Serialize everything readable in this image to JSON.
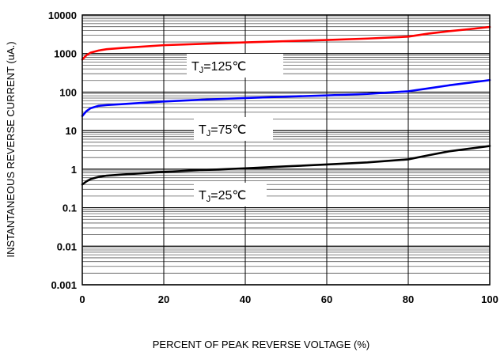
{
  "chart_data": {
    "type": "line",
    "xlabel": "PERCENT OF PEAK REVERSE VOLTAGE (%)",
    "ylabel": "INSTANTANEOUS REVERSE CURRENT (uA.)",
    "xlim": [
      0,
      100
    ],
    "ylim": [
      0.001,
      10000
    ],
    "yscale": "log",
    "grid": true,
    "x_ticks": [
      "0",
      "20",
      "40",
      "60",
      "80",
      "100"
    ],
    "y_ticks": [
      "0.001",
      "0.01",
      "0.1",
      "1",
      "10",
      "100",
      "1000",
      "10000"
    ],
    "series": [
      {
        "name": "TJ=125℃",
        "label_main": "T",
        "label_sub": "J",
        "label_rest": "=125℃",
        "color": "#ff0000",
        "x": [
          0,
          1,
          2,
          4,
          6,
          10,
          20,
          30,
          40,
          50,
          60,
          70,
          80,
          85,
          90,
          95,
          100
        ],
        "y": [
          700,
          900,
          1050,
          1200,
          1300,
          1400,
          1650,
          1800,
          1950,
          2100,
          2250,
          2450,
          2750,
          3300,
          3800,
          4300,
          4900
        ]
      },
      {
        "name": "TJ=75℃",
        "label_main": "T",
        "label_sub": "J",
        "label_rest": "=75℃",
        "color": "#0000ff",
        "x": [
          0,
          1,
          2,
          4,
          6,
          10,
          20,
          30,
          40,
          50,
          60,
          70,
          80,
          85,
          90,
          95,
          100
        ],
        "y": [
          24,
          32,
          38,
          44,
          46,
          49,
          57,
          64,
          70,
          76,
          82,
          90,
          105,
          125,
          150,
          175,
          205
        ]
      },
      {
        "name": "TJ=25℃",
        "label_main": "T",
        "label_sub": "J",
        "label_rest": "=25℃",
        "color": "#000000",
        "x": [
          0,
          1,
          2,
          4,
          6,
          10,
          20,
          30,
          40,
          50,
          60,
          70,
          80,
          85,
          90,
          95,
          100
        ],
        "y": [
          0.4,
          0.48,
          0.55,
          0.63,
          0.68,
          0.73,
          0.85,
          0.95,
          1.05,
          1.18,
          1.32,
          1.5,
          1.8,
          2.3,
          2.9,
          3.4,
          4.0
        ]
      }
    ]
  }
}
